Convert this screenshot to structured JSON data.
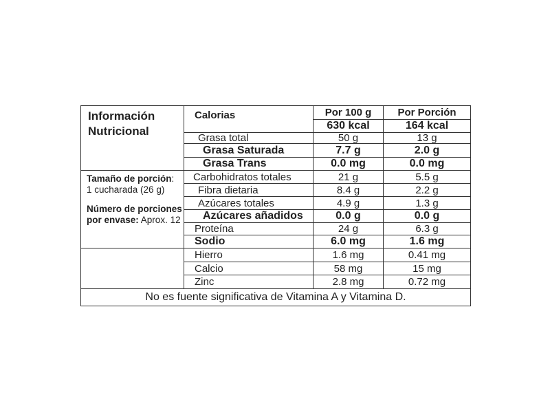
{
  "title": "Información Nutricional",
  "calories_label": "Calorias",
  "columns": [
    "Por 100 g",
    "Por Porción"
  ],
  "calories": [
    "630 kcal",
    "164 kcal"
  ],
  "serving": {
    "size_label": "Tamaño de porción",
    "size_colon": ":",
    "size_value": "1 cucharada (26 g)",
    "count_label": "Número de porciones por envase:",
    "count_value": "Aprox. 12"
  },
  "rows": [
    {
      "name": "Grasa total",
      "per100": "50 g",
      "portion": "13 g"
    },
    {
      "name": "Grasa Saturada",
      "per100": "7.7 g",
      "portion": "2.0 g"
    },
    {
      "name": "Grasa Trans",
      "per100": "0.0 mg",
      "portion": "0.0 mg"
    },
    {
      "name": "Carbohidratos totales",
      "per100": "21 g",
      "portion": "5.5 g"
    },
    {
      "name": "Fibra dietaria",
      "per100": "8.4 g",
      "portion": "2.2 g"
    },
    {
      "name": "Azúcares totales",
      "per100": "4.9 g",
      "portion": "1.3 g"
    },
    {
      "name": "Azúcares añadidos",
      "per100": "0.0 g",
      "portion": "0.0 g"
    },
    {
      "name": "Proteína",
      "per100": "24 g",
      "portion": "6.3 g"
    },
    {
      "name": "Sodio",
      "per100": "6.0 mg",
      "portion": "1.6 mg"
    },
    {
      "name": "Hierro",
      "per100": "1.6 mg",
      "portion": "0.41 mg"
    },
    {
      "name": "Calcio",
      "per100": "58 mg",
      "portion": "15 mg"
    },
    {
      "name": "Zinc",
      "per100": "2.8 mg",
      "portion": "0.72 mg"
    }
  ],
  "footer": "No es fuente significativa de Vitamina A y Vitamina D."
}
